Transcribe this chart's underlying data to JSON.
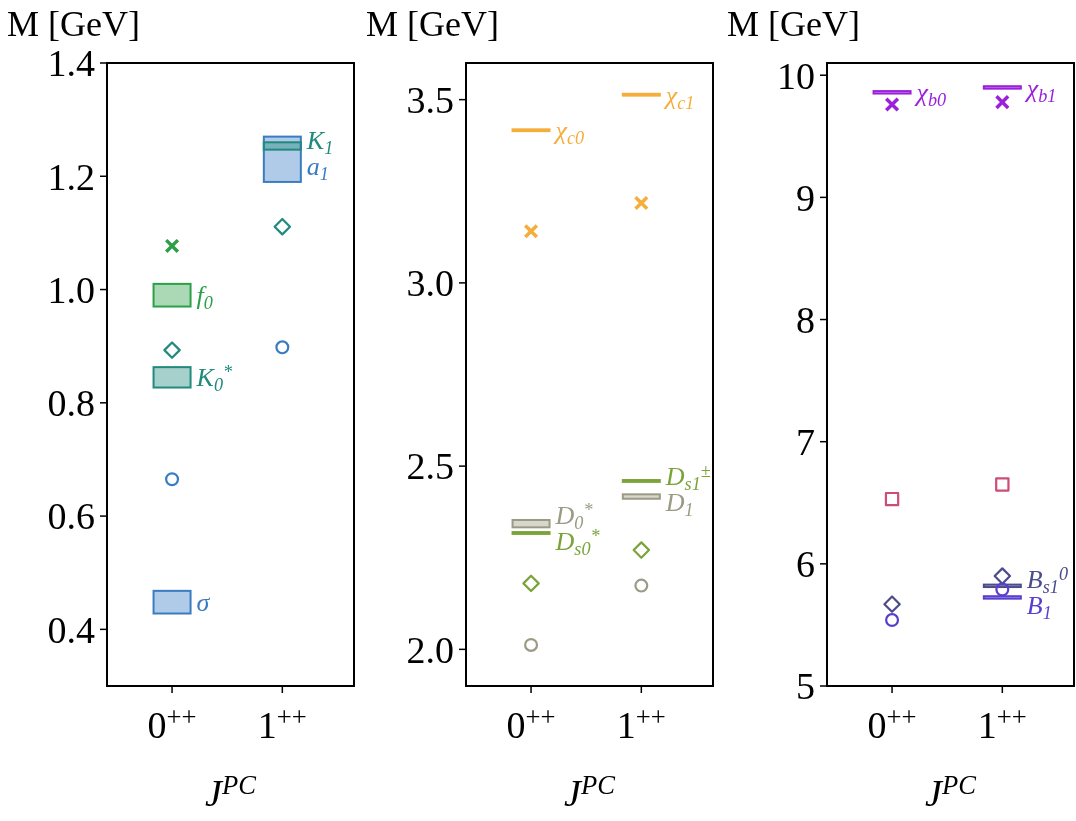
{
  "chart_data": [
    {
      "type": "bar",
      "ylabel": "M [GeV]",
      "xlabel": "J$^{PC}$",
      "categories": [
        "0$^{++}$",
        "1$^{++}$"
      ],
      "ylim": [
        0.3,
        1.4
      ],
      "yticks": [
        0.4,
        0.6,
        0.8,
        {
          "value": 1,
          "label": "1.0"
        },
        1.2,
        1.4
      ],
      "series": [
        {
          "name": "f$_{0}$",
          "color": "#2ca048",
          "base": [
            0.97,
            null
          ],
          "values": [
            0.04,
            null
          ]
        },
        {
          "name": "K$_{0}$$^{*}$",
          "color": "#218a7c",
          "base": [
            0.827,
            null
          ],
          "values": [
            0.036,
            null
          ]
        },
        {
          "name": "σ",
          "color": "#3a7cc2",
          "base": [
            0.428,
            null
          ],
          "values": [
            0.04,
            null
          ]
        },
        {
          "name": "a$_{1}$",
          "color": "#3a7cc2",
          "base": [
            null,
            1.19
          ],
          "values": [
            null,
            0.08
          ]
        },
        {
          "name": "K$_{1}$",
          "color": "#218a7c",
          "base": [
            null,
            1.247
          ],
          "values": [
            null,
            0.013
          ]
        },
        {
          "type": "scatter",
          "marker": "cross",
          "color": "#2ca048",
          "values": [
            1.077,
            null
          ]
        },
        {
          "type": "scatter",
          "marker": "diamond",
          "color": "#218a7c",
          "values": [
            0.893,
            1.111
          ]
        },
        {
          "type": "scatter",
          "marker": "circle",
          "color": "#3a7cc2",
          "values": [
            0.665,
            0.898
          ]
        }
      ]
    },
    {
      "type": "bar",
      "ylabel": "M [GeV]",
      "xlabel": "J$^{PC}$",
      "categories": [
        "0$^{++}$",
        "1$^{++}$"
      ],
      "ylim": [
        1.9,
        3.6
      ],
      "yticks": [
        {
          "value": 2,
          "label": "2.0"
        },
        2.5,
        {
          "value": 3,
          "label": "3.0"
        },
        3.5
      ],
      "series": [
        {
          "name": "χ$_{c0}$",
          "color": "#f5ad3b",
          "base": [
            3.414,
            null
          ],
          "values": [
            0.005,
            null
          ]
        },
        {
          "name": "χ$_{c1}$",
          "color": "#f5ad3b",
          "base": [
            null,
            3.511
          ],
          "values": [
            null,
            0.005
          ]
        },
        {
          "name": "D$_{0}$$^{*}$",
          "color": "#9a9a85",
          "base": [
            2.333,
            null
          ],
          "values": [
            0.02,
            null
          ]
        },
        {
          "name": "D$_{s0}$$^{*}$",
          "color": "#7aa33a",
          "base": [
            2.315,
            null
          ],
          "values": [
            0.005,
            null
          ]
        },
        {
          "name": "D$_{s1}$$^{±}$",
          "color": "#7aa33a",
          "base": [
            null,
            2.457
          ],
          "values": [
            null,
            0.005
          ]
        },
        {
          "name": "D$_{1}$",
          "color": "#9a9a85",
          "base": [
            null,
            2.411
          ],
          "values": [
            null,
            0.012
          ]
        },
        {
          "type": "scatter",
          "marker": "cross",
          "color": "#f5ad3b",
          "values": [
            3.141,
            3.218
          ]
        },
        {
          "type": "scatter",
          "marker": "diamond",
          "color": "#7aa33a",
          "values": [
            2.18,
            2.271
          ]
        },
        {
          "type": "scatter",
          "marker": "circle",
          "color": "#9a9a85",
          "values": [
            2.012,
            2.174
          ]
        }
      ]
    },
    {
      "type": "bar",
      "ylabel": "M [GeV]",
      "xlabel": "J$^{PC}$",
      "categories": [
        "0$^{++}$",
        "1$^{++}$"
      ],
      "ylim": [
        5,
        10.1
      ],
      "yticks": [
        5,
        6,
        7,
        8,
        9,
        10
      ],
      "series": [
        {
          "name": "χ$_{b0}$",
          "color": "#9b1fdb",
          "base": [
            9.85,
            null
          ],
          "values": [
            0.02,
            null
          ]
        },
        {
          "name": "χ$_{b1}$",
          "color": "#9b1fdb",
          "base": [
            null,
            9.89
          ],
          "values": [
            null,
            0.02
          ]
        },
        {
          "name": "B$_{s1}$$^{0}$",
          "color": "#4b4c8a",
          "base": [
            null,
            5.81
          ],
          "values": [
            null,
            0.02
          ]
        },
        {
          "name": "B$_{1}$",
          "color": "#5a3fcf",
          "base": [
            null,
            5.715
          ],
          "values": [
            null,
            0.02
          ]
        },
        {
          "type": "scatter",
          "marker": "cross",
          "color": "#9b1fdb",
          "values": [
            9.76,
            9.78
          ]
        },
        {
          "type": "scatter",
          "marker": "square",
          "color": "#cc4c7a",
          "values": [
            6.53,
            6.65
          ]
        },
        {
          "type": "scatter",
          "marker": "diamond",
          "color": "#4b4c8a",
          "values": [
            5.67,
            5.9
          ]
        },
        {
          "type": "scatter",
          "marker": "circle",
          "color": "#5a3fcf",
          "values": [
            5.54,
            5.79
          ]
        }
      ]
    }
  ]
}
